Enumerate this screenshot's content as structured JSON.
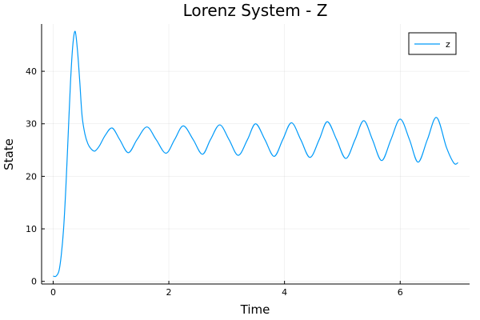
{
  "chart_data": {
    "type": "line",
    "title": "Lorenz System - Z",
    "xlabel": "Time",
    "ylabel": "State",
    "xlim": [
      -0.2,
      7.2
    ],
    "ylim": [
      -0.5,
      49
    ],
    "xticks": [
      0,
      2,
      4,
      6
    ],
    "yticks": [
      0,
      10,
      20,
      30,
      40
    ],
    "grid": true,
    "legend": "top-right",
    "series": [
      {
        "name": "z",
        "color": "#009af9",
        "x": [
          0,
          0.05,
          0.1,
          0.14,
          0.18,
          0.22,
          0.26,
          0.3,
          0.34,
          0.38,
          0.42,
          0.46,
          0.5,
          0.55,
          0.6,
          0.65,
          0.72,
          0.8,
          0.9,
          1.02,
          1.15,
          1.3,
          1.45,
          1.62,
          1.78,
          1.95,
          2.1,
          2.25,
          2.42,
          2.58,
          2.72,
          2.88,
          3.04,
          3.2,
          3.36,
          3.5,
          3.66,
          3.82,
          3.97,
          4.12,
          4.28,
          4.44,
          4.6,
          4.74,
          4.9,
          5.06,
          5.22,
          5.37,
          5.52,
          5.68,
          5.84,
          6.0,
          6.16,
          6.31,
          6.47,
          6.63,
          6.8,
          6.93,
          7.0
        ],
        "y": [
          1.0,
          1.0,
          2.0,
          5.0,
          10.0,
          18.0,
          28.0,
          38.0,
          45.0,
          47.6,
          44.0,
          38.0,
          31.5,
          28.0,
          26.2,
          25.3,
          24.8,
          25.8,
          27.8,
          29.2,
          27.0,
          24.5,
          27.0,
          29.4,
          27.0,
          24.4,
          27.0,
          29.6,
          27.0,
          24.2,
          27.0,
          29.8,
          27.0,
          24.0,
          27.0,
          30.0,
          27.0,
          23.8,
          27.0,
          30.2,
          27.0,
          23.6,
          27.0,
          30.4,
          27.0,
          23.4,
          27.0,
          30.6,
          27.0,
          23.0,
          27.0,
          30.9,
          27.0,
          22.7,
          27.0,
          31.2,
          25.5,
          22.5,
          22.6
        ]
      }
    ]
  }
}
